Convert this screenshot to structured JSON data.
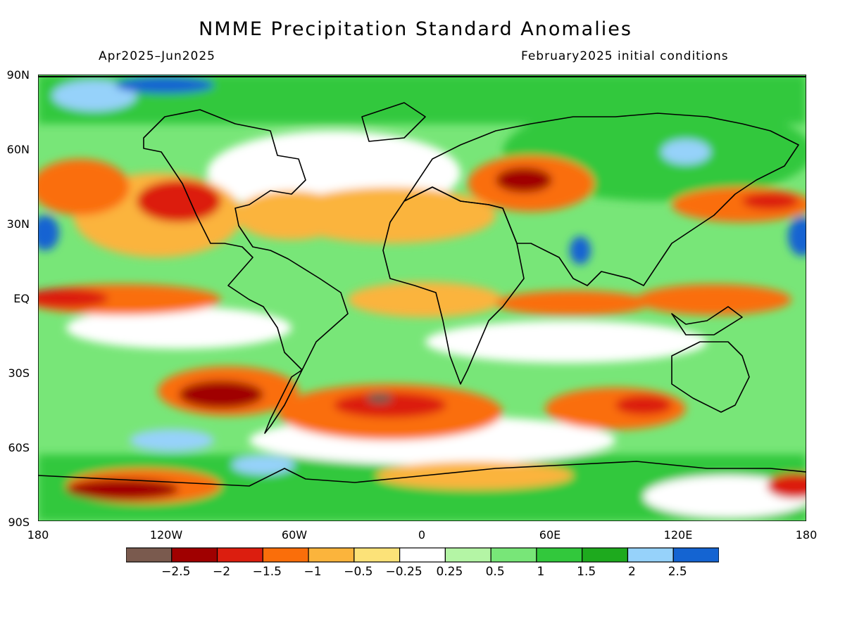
{
  "title": "NMME Precipitation Standard Anomalies",
  "subtitle_left": "Apr2025–Jun2025",
  "subtitle_right": "February2025 initial conditions",
  "lat_labels": [
    "90N",
    "60N",
    "30N",
    "EQ",
    "30S",
    "60S",
    "90S"
  ],
  "lon_labels": [
    "180",
    "120W",
    "60W",
    "0",
    "60E",
    "120E",
    "180"
  ],
  "colorbar": {
    "colors": [
      "#7a5a4e",
      "#a00000",
      "#dc1e0f",
      "#fa6e0a",
      "#fbb43c",
      "#fce278",
      "#ffffff",
      "#b4f5a5",
      "#78e678",
      "#32c83c",
      "#1eaa1e",
      "#96d2fa",
      "#1464d2"
    ],
    "labels": [
      "−2.5",
      "−2",
      "−1.5",
      "−1",
      "−0.5",
      "−0.25",
      "0.25",
      "0.5",
      "1",
      "1.5",
      "2",
      "2.5"
    ]
  }
}
